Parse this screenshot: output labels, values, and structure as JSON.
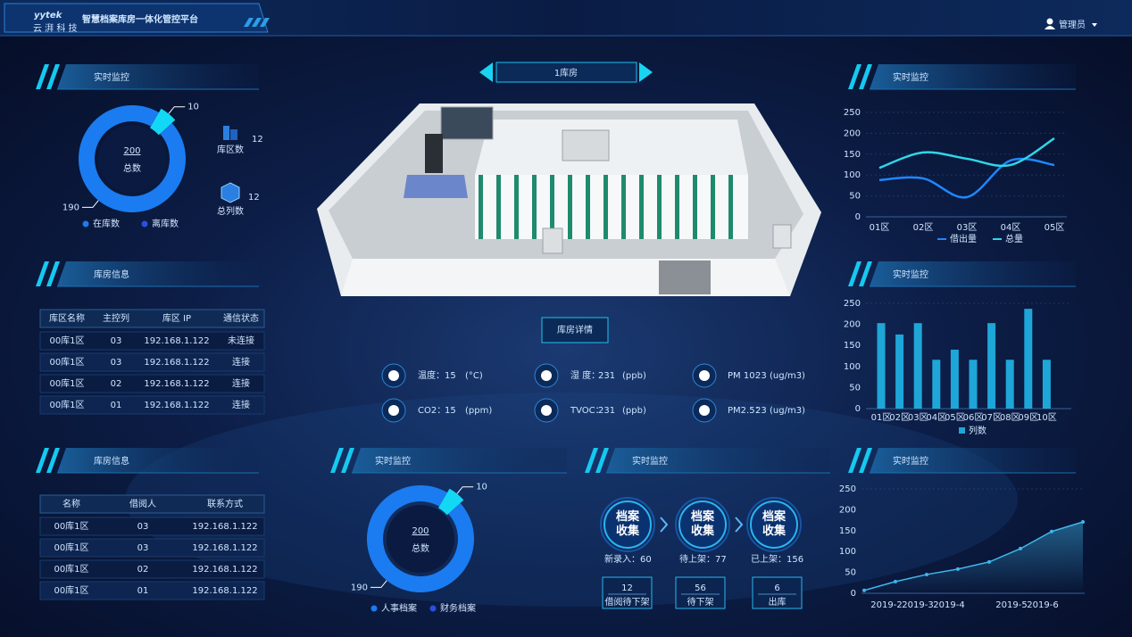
{
  "header": {
    "logo": "yytek",
    "logo_sub": "云 湃 科 技",
    "title": "智慧档案库房一体化管控平台",
    "user": "管理员"
  },
  "left_monitor": {
    "title": "实时监控",
    "donut": {
      "total": 200,
      "total_label": "总数",
      "values": [
        190,
        10
      ],
      "labels": [
        "在库数",
        "离库数"
      ],
      "colors": [
        "#1a7cf0",
        "#12d8f5"
      ]
    },
    "stats": [
      {
        "label": "库区数",
        "value": 12
      },
      {
        "label": "总列数",
        "value": 12
      }
    ]
  },
  "room_table": {
    "title": "库房信息",
    "headers": [
      "库区名称",
      "主控列",
      "库区 IP",
      "通信状态"
    ],
    "rows": [
      [
        "00库1区",
        "03",
        "192.168.1.122",
        "未连接"
      ],
      [
        "00库1区",
        "03",
        "192.168.1.122",
        "连接"
      ],
      [
        "00库1区",
        "02",
        "192.168.1.122",
        "连接"
      ],
      [
        "00库1区",
        "01",
        "192.168.1.122",
        "连接"
      ]
    ]
  },
  "borrow_table": {
    "title": "库房信息",
    "headers": [
      "名称",
      "借阅人",
      "联系方式"
    ],
    "rows": [
      [
        "00库1区",
        "03",
        "192.168.1.122"
      ],
      [
        "00库1区",
        "03",
        "192.168.1.122"
      ],
      [
        "00库1区",
        "02",
        "192.168.1.122"
      ],
      [
        "00库1区",
        "01",
        "192.168.1.122"
      ]
    ]
  },
  "room": {
    "name": "1库房",
    "button": "库房详情",
    "sensors": [
      {
        "label": "温度：",
        "value": 15,
        "unit": "(°C)"
      },
      {
        "label": "湿 度：",
        "value": 231,
        "unit": "(ppb)"
      },
      {
        "label": "PM 10:",
        "value": 23,
        "unit": "(ug/m3)"
      },
      {
        "label": "CO2：",
        "value": 15,
        "unit": "(ppm)"
      },
      {
        "label": "TVOC：",
        "value": 231,
        "unit": "(ppb)"
      },
      {
        "label": "PM2.5：",
        "value": 23,
        "unit": "(ug/m3)"
      }
    ]
  },
  "archive_monitor": {
    "title": "实时监控",
    "donut": {
      "total": 200,
      "total_label": "总数",
      "values": [
        190,
        10
      ],
      "labels": [
        "人事档案",
        "财务档案"
      ],
      "colors": [
        "#1a7cf0",
        "#12d8f5"
      ]
    }
  },
  "flow": {
    "title": "实时监控",
    "steps": [
      {
        "name": "档案收集",
        "label": "新录入：",
        "value": 60
      },
      {
        "name": "档案收集",
        "label": "待上架：",
        "value": 77
      },
      {
        "name": "档案收集",
        "label": "已上架：",
        "value": 156
      }
    ],
    "boxes": [
      {
        "value": 12,
        "label": "借阅待下架"
      },
      {
        "value": 56,
        "label": "待下架"
      },
      {
        "value": 6,
        "label": "出库"
      }
    ]
  },
  "line_chart": {
    "type": "line",
    "title": "实时监控",
    "categories": [
      "01区",
      "02区",
      "03区",
      "04区",
      "05区"
    ],
    "series": [
      {
        "name": "借出量",
        "color": "#1e88ff",
        "values": [
          88,
          92,
          47,
          135,
          124
        ]
      },
      {
        "name": "总量",
        "color": "#2fd6e8",
        "values": [
          117,
          154,
          139,
          124,
          188
        ]
      }
    ],
    "ylim": [
      0,
      250
    ],
    "yticks": [
      0,
      50,
      100,
      150,
      200,
      250
    ],
    "grid": true
  },
  "bar_chart": {
    "type": "bar",
    "title": "实时监控",
    "categories": [
      "01区",
      "02区",
      "03区",
      "04区",
      "05区",
      "06区",
      "07区",
      "08区",
      "09区",
      "10区"
    ],
    "series": [
      {
        "name": "列数",
        "color": "#1fa6d8",
        "values": [
          203,
          176,
          203,
          116,
          140,
          116,
          203,
          116,
          237,
          116
        ]
      }
    ],
    "ylim": [
      0,
      250
    ],
    "yticks": [
      0,
      50,
      100,
      150,
      200,
      250
    ]
  },
  "trend_chart": {
    "type": "line",
    "title": "实时监控",
    "categories": [
      null,
      "2019-2",
      "2019-3",
      "2019-4",
      null,
      "2019-5",
      "2019-6",
      null
    ],
    "values": [
      7,
      28,
      45,
      58,
      75,
      107,
      148,
      171
    ],
    "color": "#3fb6ea",
    "ylim": [
      0,
      250
    ],
    "yticks": [
      0,
      50,
      100,
      150,
      200,
      250
    ]
  }
}
